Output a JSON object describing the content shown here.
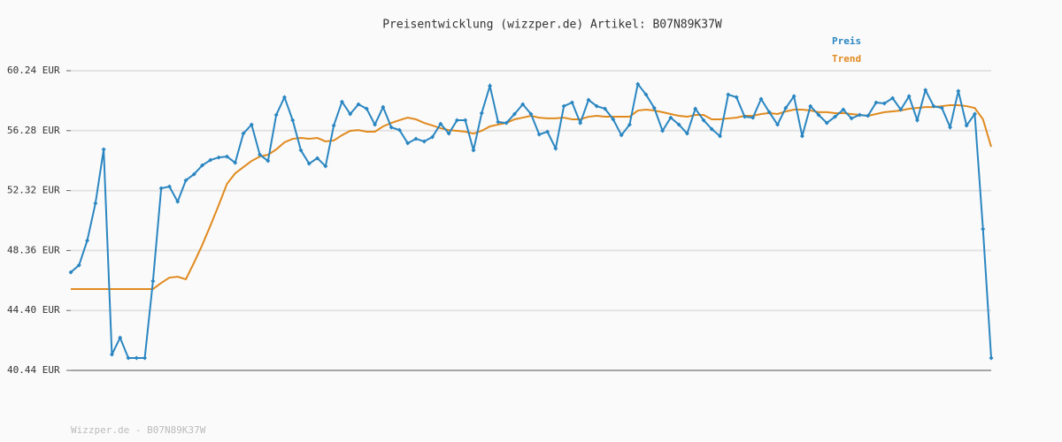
{
  "chart_data": {
    "type": "line",
    "title": "Preisentwicklung (wizzper.de) Artikel: B07N89K37W",
    "footer": "Wizzper.de - B07N89K37W",
    "ylim": [
      40.44,
      60.24
    ],
    "yticks": [
      {
        "value": 40.44,
        "label": "40.44 EUR"
      },
      {
        "value": 44.4,
        "label": "44.40 EUR"
      },
      {
        "value": 48.36,
        "label": "48.36 EUR"
      },
      {
        "value": 52.32,
        "label": "52.32 EUR"
      },
      {
        "value": 56.28,
        "label": "56.28 EUR"
      },
      {
        "value": 60.24,
        "label": "60.24 EUR"
      }
    ],
    "grid": true,
    "legend": "top-right",
    "series": [
      {
        "name": "Preis",
        "color": "#2a86c1",
        "markers": true,
        "values": [
          46.92,
          47.39,
          49.02,
          51.48,
          55.04,
          41.49,
          42.6,
          41.26,
          41.26,
          41.26,
          46.34,
          52.47,
          52.59,
          51.59,
          53.0,
          53.4,
          53.99,
          54.34,
          54.51,
          54.57,
          54.16,
          56.09,
          56.68,
          54.69,
          54.28,
          57.32,
          58.49,
          56.97,
          54.98,
          54.1,
          54.46,
          53.93,
          56.62,
          58.19,
          57.38,
          58.02,
          57.73,
          56.68,
          57.84,
          56.5,
          56.32,
          55.45,
          55.74,
          55.57,
          55.86,
          56.73,
          56.09,
          56.97,
          56.97,
          54.98,
          57.44,
          59.24,
          56.85,
          56.79,
          57.38,
          58.02,
          57.38,
          56.03,
          56.21,
          55.1,
          57.9,
          58.14,
          56.79,
          58.31,
          57.9,
          57.73,
          57.03,
          55.98,
          56.68,
          59.36,
          58.66,
          57.78,
          56.27,
          57.14,
          56.68,
          56.09,
          57.73,
          56.97,
          56.38,
          55.92,
          58.66,
          58.49,
          57.2,
          57.14,
          58.37,
          57.5,
          56.68,
          57.78,
          58.55,
          55.92,
          57.9,
          57.32,
          56.79,
          57.2,
          57.67,
          57.09,
          57.32,
          57.26,
          58.14,
          58.08,
          58.43,
          57.67,
          58.55,
          56.97,
          58.96,
          57.9,
          57.78,
          56.5,
          58.9,
          56.62,
          57.38,
          49.78,
          41.26
        ]
      },
      {
        "name": "Trend",
        "color": "#e08a1e",
        "markers": false,
        "values": [
          45.81,
          45.81,
          45.81,
          45.81,
          45.81,
          45.81,
          45.81,
          45.81,
          45.81,
          45.81,
          45.81,
          46.22,
          46.57,
          46.63,
          46.46,
          47.56,
          48.73,
          50.02,
          51.36,
          52.76,
          53.46,
          53.87,
          54.28,
          54.57,
          54.69,
          55.04,
          55.51,
          55.74,
          55.8,
          55.74,
          55.8,
          55.57,
          55.63,
          55.98,
          56.27,
          56.32,
          56.21,
          56.21,
          56.56,
          56.79,
          56.97,
          57.14,
          57.03,
          56.79,
          56.62,
          56.44,
          56.32,
          56.27,
          56.21,
          56.09,
          56.27,
          56.56,
          56.68,
          56.79,
          57.03,
          57.14,
          57.26,
          57.14,
          57.09,
          57.09,
          57.14,
          57.03,
          57.03,
          57.2,
          57.26,
          57.2,
          57.2,
          57.2,
          57.2,
          57.61,
          57.67,
          57.61,
          57.5,
          57.38,
          57.26,
          57.2,
          57.32,
          57.32,
          57.03,
          57.03,
          57.09,
          57.14,
          57.26,
          57.26,
          57.38,
          57.44,
          57.38,
          57.55,
          57.67,
          57.67,
          57.61,
          57.5,
          57.5,
          57.44,
          57.44,
          57.38,
          57.32,
          57.26,
          57.38,
          57.5,
          57.55,
          57.61,
          57.73,
          57.78,
          57.84,
          57.84,
          57.9,
          57.96,
          57.96,
          57.9,
          57.78,
          57.03,
          55.21
        ]
      }
    ]
  }
}
